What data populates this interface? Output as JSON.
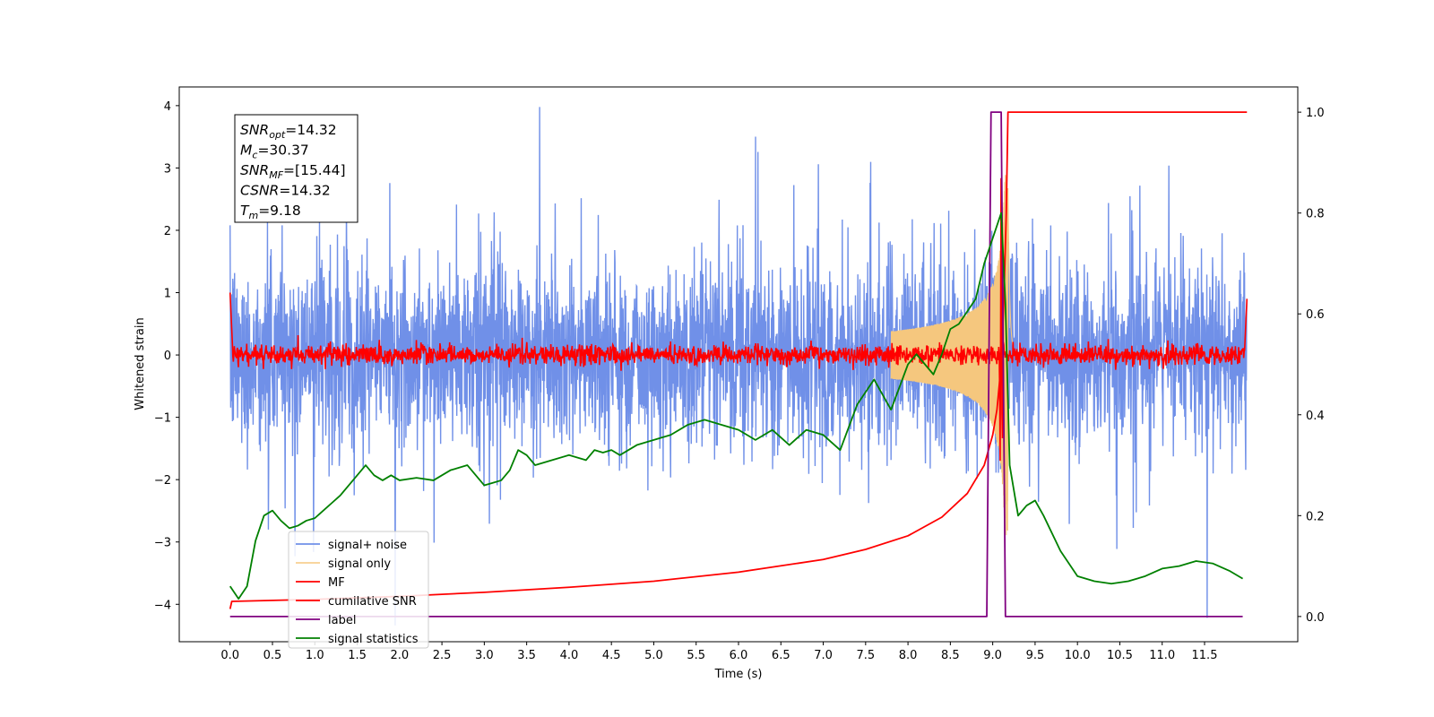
{
  "chart_data": {
    "type": "line",
    "title": "",
    "xlabel": "Time (s)",
    "ylabel": "Whitened strain",
    "xlim": [
      -0.6,
      12.6
    ],
    "ylim": [
      -4.6,
      4.3
    ],
    "y2lim": [
      -0.05,
      1.05
    ],
    "xticks": [
      "0.0",
      "0.5",
      "1.0",
      "1.5",
      "2.0",
      "2.5",
      "3.0",
      "3.5",
      "4.0",
      "4.5",
      "5.0",
      "5.5",
      "6.0",
      "6.5",
      "7.0",
      "7.5",
      "8.0",
      "8.5",
      "9.0",
      "9.5",
      "10.0",
      "10.5",
      "11.0",
      "11.5"
    ],
    "yticks": [
      "−4",
      "−3",
      "−2",
      "−1",
      "0",
      "1",
      "2",
      "3",
      "4"
    ],
    "y2ticks": [
      "0.0",
      "0.2",
      "0.4",
      "0.6",
      "0.8",
      "1.0"
    ],
    "grid": false,
    "legend_position": "lower-left",
    "info_box": {
      "lines": [
        {
          "sym": "SNR",
          "sub": "opt",
          "val": "=14.32"
        },
        {
          "sym": "M",
          "sub": "c",
          "val": "=30.37"
        },
        {
          "sym": "SNR",
          "sub": "MF",
          "val": "=[15.44]"
        },
        {
          "sym": "CSNR",
          "sub": "",
          "val": "=14.32"
        },
        {
          "sym": "T",
          "sub": "m",
          "val": "=9.18"
        }
      ]
    },
    "series": [
      {
        "name": "signal+ noise",
        "color": "#7090e8",
        "axis": "left",
        "style": "noise",
        "sigma": 0.75,
        "x_range": [
          0.0,
          12.0
        ]
      },
      {
        "name": "signal only",
        "color": "#f5c77e",
        "axis": "left",
        "style": "chirp",
        "merger_time": 9.18,
        "peak_amplitude": 2.9
      },
      {
        "name": "MF",
        "color": "#ff0000",
        "axis": "left",
        "style": "mf",
        "x_range": [
          0.0,
          12.0
        ],
        "noise_amplitude": 0.08,
        "peak": 3.1,
        "peak_time": 9.1
      },
      {
        "name": "cumilative SNR",
        "color": "#ff0000",
        "axis": "right",
        "x": [
          0.0,
          0.02,
          1.0,
          2.0,
          3.0,
          4.0,
          5.0,
          6.0,
          7.0,
          7.5,
          8.0,
          8.4,
          8.7,
          8.9,
          9.0,
          9.05,
          9.1,
          9.13,
          9.16,
          9.18,
          12.0
        ],
        "y": [
          0.015,
          0.03,
          0.034,
          0.04,
          0.048,
          0.058,
          0.07,
          0.088,
          0.113,
          0.133,
          0.16,
          0.197,
          0.244,
          0.3,
          0.36,
          0.41,
          0.5,
          0.62,
          0.8,
          1.0,
          1.0
        ]
      },
      {
        "name": "label",
        "color": "#800080",
        "axis": "right",
        "x": [
          0.0,
          8.93,
          8.98,
          9.1,
          9.15,
          11.95
        ],
        "y": [
          0.0,
          0.0,
          1.0,
          1.0,
          0.0,
          0.0
        ]
      },
      {
        "name": "signal statistics",
        "color": "#008000",
        "axis": "right",
        "x": [
          0.0,
          0.1,
          0.2,
          0.3,
          0.4,
          0.5,
          0.6,
          0.7,
          0.8,
          0.9,
          1.0,
          1.1,
          1.2,
          1.3,
          1.4,
          1.5,
          1.6,
          1.7,
          1.8,
          1.9,
          2.0,
          2.2,
          2.4,
          2.6,
          2.8,
          3.0,
          3.1,
          3.2,
          3.3,
          3.4,
          3.5,
          3.6,
          3.8,
          4.0,
          4.2,
          4.3,
          4.4,
          4.5,
          4.6,
          4.8,
          5.0,
          5.2,
          5.4,
          5.6,
          5.8,
          6.0,
          6.2,
          6.4,
          6.6,
          6.8,
          7.0,
          7.2,
          7.4,
          7.6,
          7.8,
          8.0,
          8.1,
          8.2,
          8.3,
          8.4,
          8.5,
          8.6,
          8.8,
          8.9,
          9.0,
          9.1,
          9.15,
          9.2,
          9.3,
          9.4,
          9.5,
          9.6,
          9.8,
          10.0,
          10.2,
          10.4,
          10.6,
          10.8,
          11.0,
          11.2,
          11.4,
          11.6,
          11.8,
          11.95
        ],
        "y": [
          0.06,
          0.035,
          0.06,
          0.15,
          0.2,
          0.21,
          0.19,
          0.175,
          0.18,
          0.19,
          0.195,
          0.21,
          0.225,
          0.24,
          0.26,
          0.28,
          0.3,
          0.28,
          0.27,
          0.28,
          0.27,
          0.275,
          0.27,
          0.29,
          0.3,
          0.26,
          0.265,
          0.27,
          0.29,
          0.33,
          0.32,
          0.3,
          0.31,
          0.32,
          0.31,
          0.33,
          0.325,
          0.33,
          0.32,
          0.34,
          0.35,
          0.36,
          0.38,
          0.39,
          0.38,
          0.37,
          0.35,
          0.37,
          0.34,
          0.37,
          0.36,
          0.33,
          0.42,
          0.47,
          0.41,
          0.5,
          0.52,
          0.5,
          0.48,
          0.52,
          0.57,
          0.58,
          0.63,
          0.7,
          0.75,
          0.8,
          0.62,
          0.3,
          0.2,
          0.22,
          0.23,
          0.2,
          0.13,
          0.08,
          0.07,
          0.065,
          0.07,
          0.08,
          0.095,
          0.1,
          0.11,
          0.105,
          0.09,
          0.075
        ]
      }
    ]
  }
}
